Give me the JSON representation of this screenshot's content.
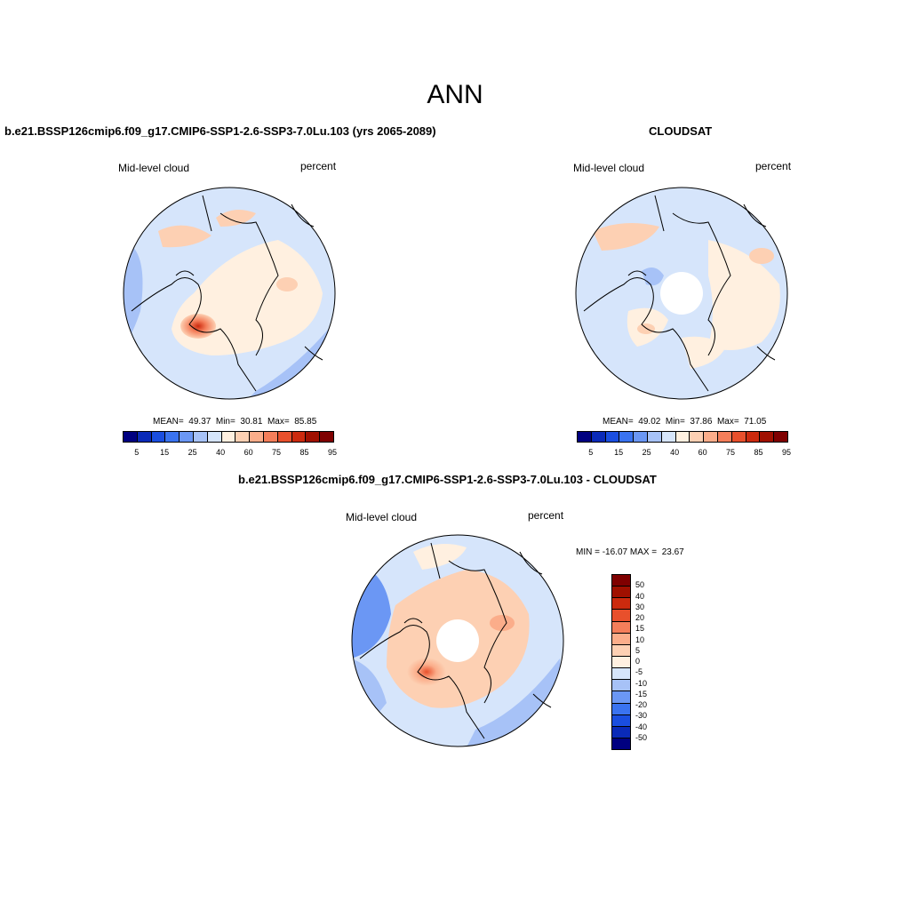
{
  "main_title": "ANN",
  "panels": [
    {
      "title": "b.e21.BSSP126cmip6.f09_g17.CMIP6-SSP1-2.6-SSP3-7.0Lu.103 (yrs 2065-2089)",
      "variable": "Mid-level cloud",
      "units": "percent",
      "stats": "MEAN=  49.37  Min=  30.81  Max=  85.85"
    },
    {
      "title": "CLOUDSAT",
      "variable": "Mid-level cloud",
      "units": "percent",
      "stats": "MEAN=  49.02  Min=  37.86  Max=  71.05"
    },
    {
      "title": "b.e21.BSSP126cmip6.f09_g17.CMIP6-SSP1-2.6-SSP3-7.0Lu.103 - CLOUDSAT",
      "variable": "Mid-level cloud",
      "units": "percent",
      "stats": "MIN = -16.07 MAX =  23.67"
    }
  ],
  "colorbar_abs": {
    "colors": [
      "#000080",
      "#0a2ab8",
      "#1a4ee0",
      "#3a73f0",
      "#6b97f4",
      "#a7c2f7",
      "#d6e5fb",
      "#fff0e0",
      "#fdd0b3",
      "#fbad8a",
      "#f47e5a",
      "#e8502c",
      "#cc2a0e",
      "#a01000",
      "#7f0000"
    ],
    "tick_labels": [
      "5",
      "15",
      "25",
      "40",
      "60",
      "75",
      "85",
      "95"
    ]
  },
  "colorbar_diff": {
    "colors": [
      "#7f0000",
      "#a01000",
      "#cc2a0e",
      "#e8502c",
      "#f47e5a",
      "#fbad8a",
      "#fdd0b3",
      "#fff0e0",
      "#d6e5fb",
      "#a7c2f7",
      "#6b97f4",
      "#3a73f0",
      "#1a4ee0",
      "#0a2ab8",
      "#000080"
    ],
    "tick_labels": [
      "50",
      "40",
      "30",
      "20",
      "15",
      "10",
      "5",
      "0",
      "-5",
      "-10",
      "-15",
      "-20",
      "-30",
      "-40",
      "-50"
    ]
  }
}
